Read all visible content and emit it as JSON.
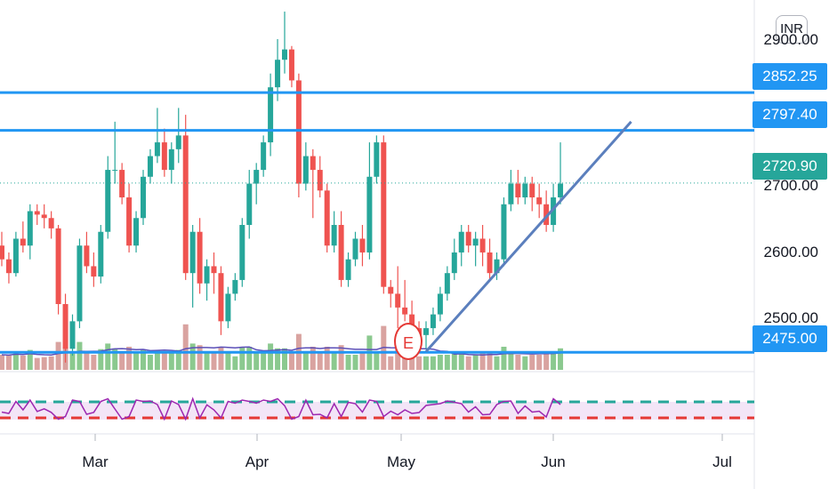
{
  "currency": "INR",
  "event_marker": "E",
  "price_axis": {
    "scale_labels": [
      "2900.00",
      "2700.00",
      "2600.00",
      "2500.00"
    ],
    "tags": [
      {
        "value": "2852.25",
        "kind": "hline"
      },
      {
        "value": "2797.40",
        "kind": "hline"
      },
      {
        "value": "2720.90",
        "kind": "last"
      },
      {
        "value": "2475.00",
        "kind": "hline"
      }
    ]
  },
  "time_axis": [
    "Mar",
    "Apr",
    "May",
    "Jun",
    "Jul"
  ],
  "colors": {
    "up": "#26a69a",
    "down": "#ef5350",
    "vol_up": "#8bc98f",
    "vol_down": "#d9a3a0",
    "hline": "#2196f3",
    "trendline": "#5b7fbd",
    "last_price": "#26a69a",
    "volume_ma": "#5c4fb8",
    "osc": "#9c27b0",
    "osc_upper": "#26a69a",
    "osc_lower": "#e53935",
    "osc_band": "#f3e5f7"
  },
  "chart_data": {
    "type": "candlestick",
    "series": [
      {
        "name": "",
        "kind": "ohlc",
        "ylim": [
          2452,
          2965
        ]
      },
      {
        "name": "",
        "kind": "volume"
      },
      {
        "name": "",
        "kind": "oscillator"
      }
    ],
    "horizontal_levels": [
      2852.25,
      2797.4,
      2475
    ],
    "last_price": 2720.9,
    "trendline": {
      "from": [
        "2022-05-10",
        2476
      ],
      "to": [
        "2022-06-20",
        2810
      ]
    },
    "ohlc": [
      [
        "2022-02-14",
        2630,
        2650,
        2600,
        2610
      ],
      [
        "2022-02-15",
        2610,
        2620,
        2575,
        2590
      ],
      [
        "2022-02-16",
        2590,
        2650,
        2585,
        2640
      ],
      [
        "2022-02-17",
        2640,
        2665,
        2620,
        2630
      ],
      [
        "2022-02-18",
        2630,
        2690,
        2610,
        2680
      ],
      [
        "2022-02-21",
        2680,
        2690,
        2660,
        2675
      ],
      [
        "2022-02-22",
        2675,
        2690,
        2655,
        2670
      ],
      [
        "2022-02-23",
        2670,
        2680,
        2640,
        2655
      ],
      [
        "2022-02-24",
        2655,
        2660,
        2530,
        2545
      ],
      [
        "2022-02-25",
        2545,
        2560,
        2460,
        2480
      ],
      [
        "2022-02-28",
        2480,
        2530,
        2470,
        2520
      ],
      [
        "2022-03-01",
        2520,
        2640,
        2510,
        2630
      ],
      [
        "2022-03-02",
        2630,
        2650,
        2590,
        2600
      ],
      [
        "2022-03-03",
        2600,
        2620,
        2570,
        2585
      ],
      [
        "2022-03-04",
        2585,
        2660,
        2575,
        2650
      ],
      [
        "2022-03-07",
        2650,
        2760,
        2640,
        2740
      ],
      [
        "2022-03-08",
        2740,
        2810,
        2720,
        2740
      ],
      [
        "2022-03-09",
        2740,
        2750,
        2690,
        2700
      ],
      [
        "2022-03-10",
        2700,
        2720,
        2620,
        2630
      ],
      [
        "2022-03-11",
        2630,
        2680,
        2620,
        2670
      ],
      [
        "2022-03-14",
        2670,
        2740,
        2660,
        2730
      ],
      [
        "2022-03-15",
        2730,
        2770,
        2720,
        2760
      ],
      [
        "2022-03-16",
        2760,
        2830,
        2750,
        2780
      ],
      [
        "2022-03-17",
        2780,
        2800,
        2730,
        2740
      ],
      [
        "2022-03-18",
        2740,
        2780,
        2720,
        2770
      ],
      [
        "2022-03-21",
        2770,
        2830,
        2750,
        2790
      ],
      [
        "2022-03-22",
        2790,
        2820,
        2580,
        2590
      ],
      [
        "2022-03-23",
        2590,
        2660,
        2540,
        2650
      ],
      [
        "2022-03-24",
        2650,
        2670,
        2560,
        2575
      ],
      [
        "2022-03-25",
        2575,
        2610,
        2550,
        2600
      ],
      [
        "2022-03-28",
        2600,
        2620,
        2560,
        2590
      ],
      [
        "2022-03-29",
        2590,
        2600,
        2500,
        2520
      ],
      [
        "2022-03-30",
        2520,
        2570,
        2510,
        2560
      ],
      [
        "2022-03-31",
        2560,
        2590,
        2550,
        2580
      ],
      [
        "2022-04-01",
        2580,
        2670,
        2570,
        2660
      ],
      [
        "2022-04-04",
        2660,
        2740,
        2640,
        2720
      ],
      [
        "2022-04-05",
        2720,
        2750,
        2690,
        2740
      ],
      [
        "2022-04-06",
        2740,
        2790,
        2730,
        2780
      ],
      [
        "2022-04-07",
        2780,
        2880,
        2760,
        2860
      ],
      [
        "2022-04-08",
        2860,
        2930,
        2840,
        2900
      ],
      [
        "2022-04-11",
        2900,
        2970,
        2880,
        2915
      ],
      [
        "2022-04-12",
        2915,
        2920,
        2860,
        2870
      ],
      [
        "2022-04-13",
        2870,
        2880,
        2700,
        2720
      ],
      [
        "2022-04-14",
        2720,
        2780,
        2710,
        2760
      ],
      [
        "2022-04-18",
        2760,
        2770,
        2670,
        2740
      ],
      [
        "2022-04-19",
        2740,
        2760,
        2700,
        2710
      ],
      [
        "2022-04-20",
        2710,
        2720,
        2620,
        2630
      ],
      [
        "2022-04-21",
        2630,
        2680,
        2620,
        2660
      ],
      [
        "2022-04-22",
        2660,
        2680,
        2570,
        2580
      ],
      [
        "2022-04-25",
        2580,
        2620,
        2570,
        2610
      ],
      [
        "2022-04-26",
        2610,
        2650,
        2600,
        2640
      ],
      [
        "2022-04-27",
        2640,
        2660,
        2600,
        2620
      ],
      [
        "2022-04-28",
        2620,
        2780,
        2610,
        2730
      ],
      [
        "2022-04-29",
        2730,
        2790,
        2720,
        2780
      ],
      [
        "2022-05-02",
        2780,
        2790,
        2560,
        2570
      ],
      [
        "2022-05-03",
        2570,
        2580,
        2540,
        2560
      ],
      [
        "2022-05-04",
        2560,
        2600,
        2510,
        2540
      ],
      [
        "2022-05-05",
        2540,
        2580,
        2520,
        2530
      ],
      [
        "2022-05-06",
        2530,
        2550,
        2480,
        2510
      ],
      [
        "2022-05-09",
        2510,
        2520,
        2480,
        2500
      ],
      [
        "2022-05-10",
        2500,
        2520,
        2480,
        2510
      ],
      [
        "2022-05-11",
        2510,
        2540,
        2500,
        2530
      ],
      [
        "2022-05-12",
        2530,
        2570,
        2520,
        2560
      ],
      [
        "2022-05-13",
        2560,
        2600,
        2550,
        2590
      ],
      [
        "2022-05-16",
        2590,
        2640,
        2580,
        2620
      ],
      [
        "2022-05-17",
        2620,
        2660,
        2600,
        2650
      ],
      [
        "2022-05-18",
        2650,
        2660,
        2620,
        2630
      ],
      [
        "2022-05-19",
        2630,
        2650,
        2600,
        2640
      ],
      [
        "2022-05-20",
        2640,
        2660,
        2600,
        2620
      ],
      [
        "2022-05-23",
        2620,
        2640,
        2580,
        2590
      ],
      [
        "2022-05-24",
        2590,
        2620,
        2580,
        2610
      ],
      [
        "2022-05-25",
        2610,
        2700,
        2600,
        2690
      ],
      [
        "2022-05-26",
        2690,
        2740,
        2680,
        2720
      ],
      [
        "2022-05-27",
        2720,
        2740,
        2690,
        2700
      ],
      [
        "2022-05-30",
        2700,
        2730,
        2690,
        2720
      ],
      [
        "2022-05-31",
        2720,
        2730,
        2680,
        2700
      ],
      [
        "2022-06-01",
        2700,
        2720,
        2670,
        2690
      ],
      [
        "2022-06-02",
        2690,
        2710,
        2650,
        2660
      ],
      [
        "2022-06-03",
        2660,
        2720,
        2650,
        2700
      ],
      [
        "2022-06-06",
        2700,
        2780,
        2690,
        2720
      ]
    ]
  }
}
